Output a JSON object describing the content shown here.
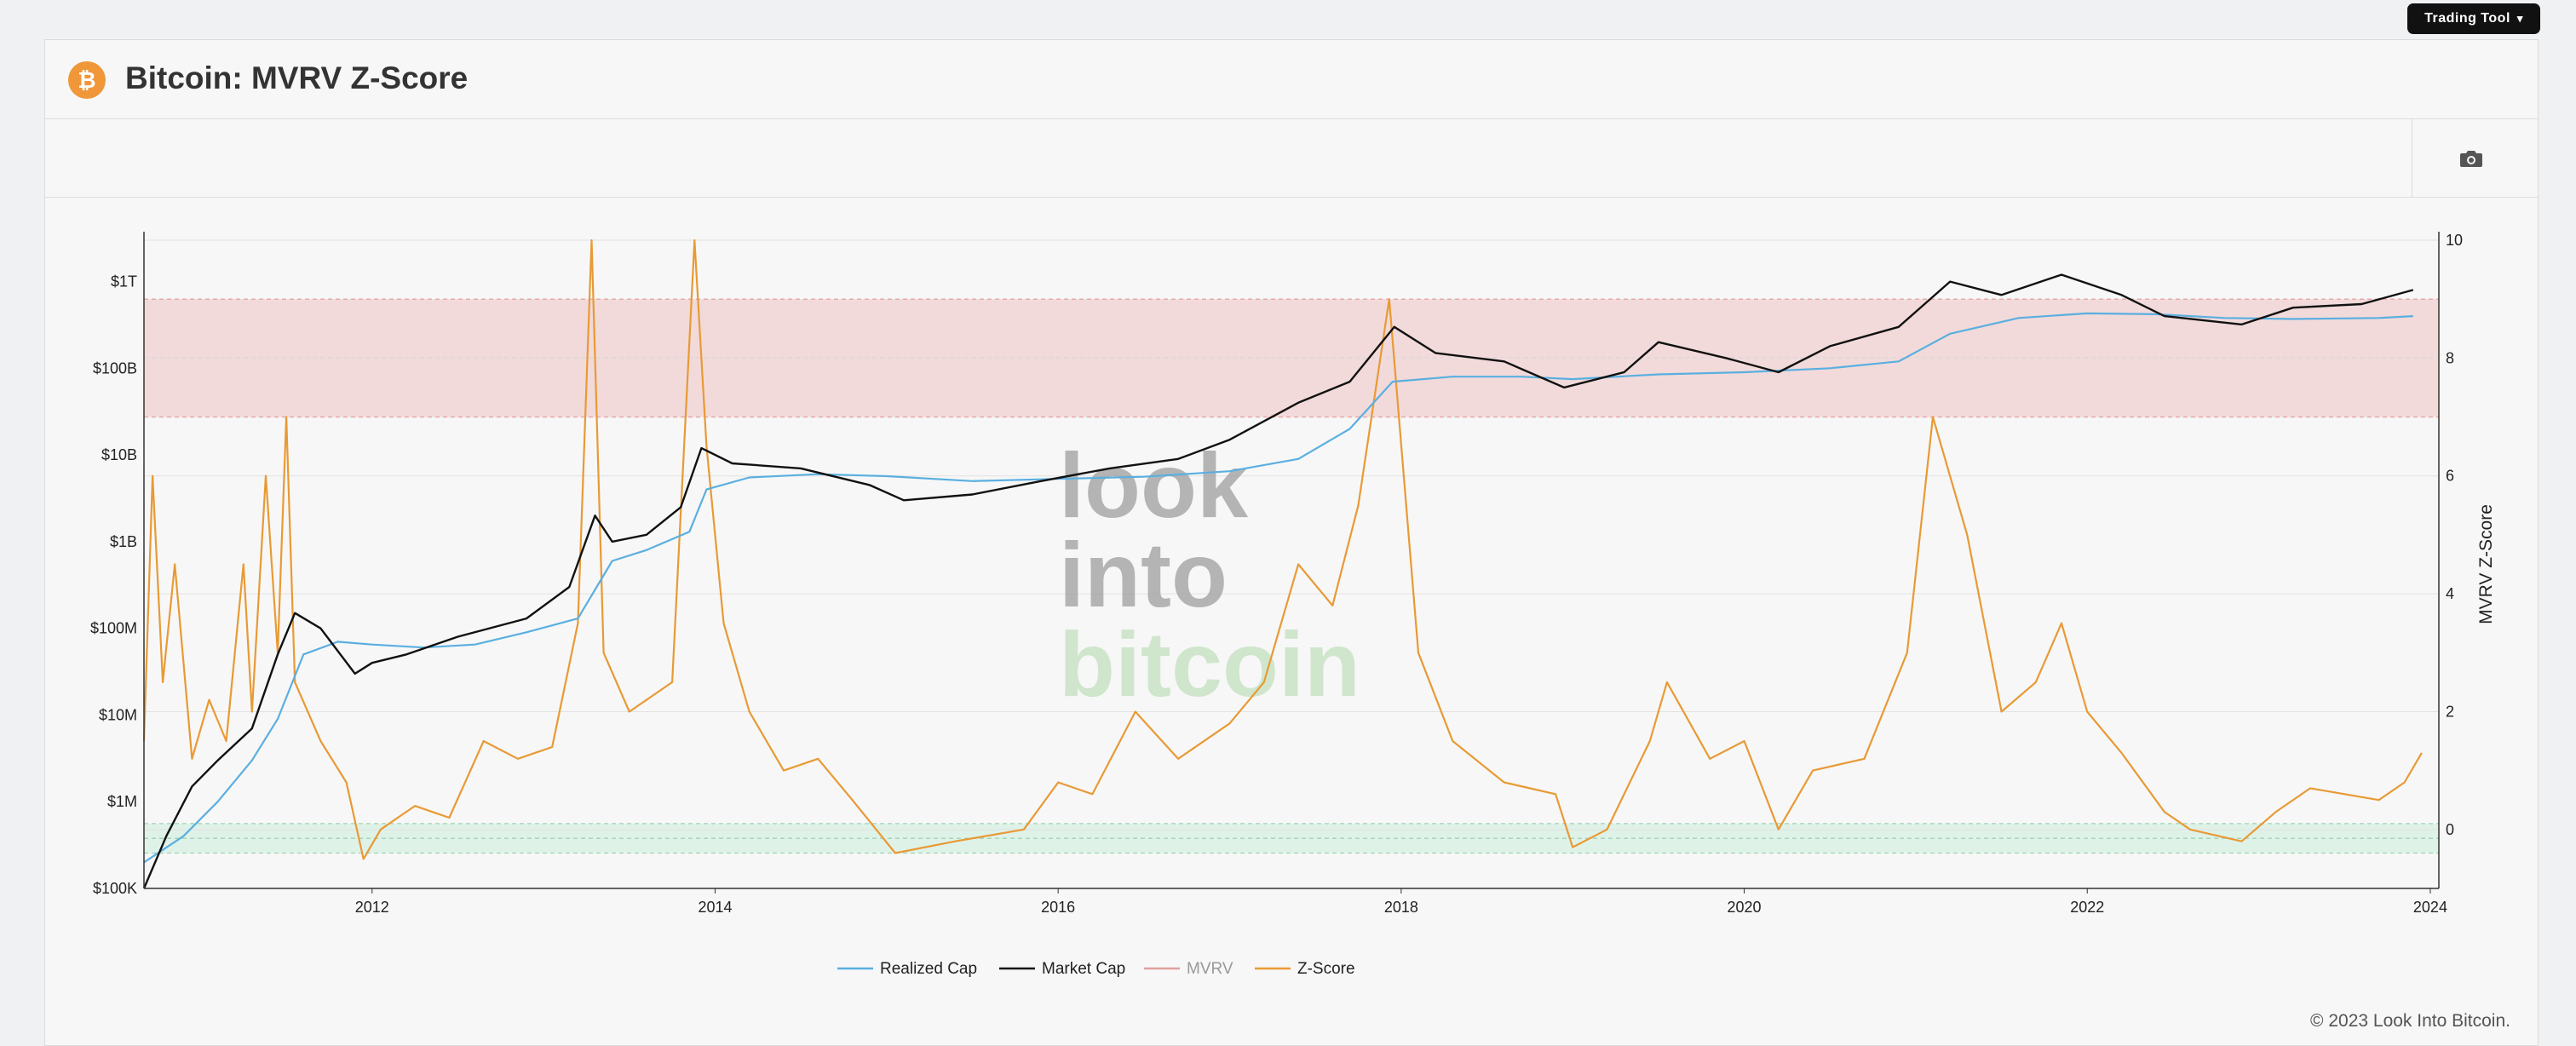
{
  "header": {
    "title": "Bitcoin: MVRV Z-Score",
    "logo_glyph": "₿"
  },
  "toolbar": {
    "trading_tool_label": "Trading Tool",
    "trading_tool_caret": "▾",
    "camera_icon": "camera-icon"
  },
  "footer": {
    "copyright": "© 2023 Look Into Bitcoin."
  },
  "watermark": {
    "line1": "look",
    "line2": "into",
    "line3": "bitcoin"
  },
  "colors": {
    "realized": "#5aafe0",
    "market": "#111111",
    "mvrv": "#e0a0a0",
    "zscore": "#e89a35",
    "red_band": "#f2dada",
    "green_band": "#dff2e8"
  },
  "chart_data": {
    "type": "line",
    "title": "Bitcoin: MVRV Z-Score",
    "xlabel": "",
    "ylabel_right": "MVRV Z-Score",
    "x_range": [
      2010.67,
      2024.05
    ],
    "x_ticks": [
      "2012",
      "2014",
      "2016",
      "2018",
      "2020",
      "2022",
      "2024"
    ],
    "y_left_scale": "log",
    "y_left_range": [
      100000,
      3000000000000
    ],
    "y_left_ticks": [
      {
        "label": "$100K",
        "value": 100000
      },
      {
        "label": "$1M",
        "value": 1000000
      },
      {
        "label": "$10M",
        "value": 10000000
      },
      {
        "label": "$100M",
        "value": 100000000
      },
      {
        "label": "$1B",
        "value": 1000000000
      },
      {
        "label": "$10B",
        "value": 10000000000
      },
      {
        "label": "$100B",
        "value": 100000000000
      },
      {
        "label": "$1T",
        "value": 1000000000000
      }
    ],
    "y_right_range": [
      -1,
      10
    ],
    "y_right_ticks": [
      "0",
      "2",
      "4",
      "6",
      "8",
      "10"
    ],
    "bands": [
      {
        "name": "overvalued",
        "z_from": 7,
        "z_to": 9
      },
      {
        "name": "undervalued",
        "z_from": -0.4,
        "z_to": 0.1
      }
    ],
    "legend": [
      "Realized Cap",
      "Market Cap",
      "MVRV",
      "Z-Score"
    ],
    "legend_position": "bottom-center",
    "series": [
      {
        "name": "Realized Cap",
        "axis": "left",
        "points": [
          [
            2010.67,
            200000
          ],
          [
            2010.9,
            400000
          ],
          [
            2011.1,
            1000000
          ],
          [
            2011.3,
            3000000
          ],
          [
            2011.45,
            9000000
          ],
          [
            2011.6,
            50000000
          ],
          [
            2011.8,
            70000000
          ],
          [
            2012.0,
            65000000
          ],
          [
            2012.3,
            60000000
          ],
          [
            2012.6,
            65000000
          ],
          [
            2012.9,
            90000000
          ],
          [
            2013.2,
            130000000
          ],
          [
            2013.4,
            600000000
          ],
          [
            2013.6,
            800000000
          ],
          [
            2013.85,
            1300000000
          ],
          [
            2013.95,
            4000000000
          ],
          [
            2014.2,
            5500000000
          ],
          [
            2014.6,
            6000000000
          ],
          [
            2015.0,
            5700000000
          ],
          [
            2015.5,
            5000000000
          ],
          [
            2016.0,
            5300000000
          ],
          [
            2016.5,
            5600000000
          ],
          [
            2017.0,
            6500000000
          ],
          [
            2017.4,
            9000000000
          ],
          [
            2017.7,
            20000000000
          ],
          [
            2017.95,
            70000000000
          ],
          [
            2018.3,
            80000000000
          ],
          [
            2018.7,
            80000000000
          ],
          [
            2019.0,
            75000000000
          ],
          [
            2019.5,
            85000000000
          ],
          [
            2020.0,
            90000000000
          ],
          [
            2020.5,
            100000000000
          ],
          [
            2020.9,
            120000000000
          ],
          [
            2021.2,
            250000000000
          ],
          [
            2021.6,
            380000000000
          ],
          [
            2022.0,
            430000000000
          ],
          [
            2022.4,
            420000000000
          ],
          [
            2022.8,
            380000000000
          ],
          [
            2023.2,
            370000000000
          ],
          [
            2023.7,
            380000000000
          ],
          [
            2023.9,
            400000000000
          ]
        ]
      },
      {
        "name": "Market Cap",
        "axis": "left",
        "points": [
          [
            2010.67,
            100000
          ],
          [
            2010.8,
            400000
          ],
          [
            2010.95,
            1500000
          ],
          [
            2011.1,
            3000000
          ],
          [
            2011.3,
            7000000
          ],
          [
            2011.45,
            50000000
          ],
          [
            2011.55,
            150000000
          ],
          [
            2011.7,
            100000000
          ],
          [
            2011.9,
            30000000
          ],
          [
            2012.0,
            40000000
          ],
          [
            2012.2,
            50000000
          ],
          [
            2012.5,
            80000000
          ],
          [
            2012.9,
            130000000
          ],
          [
            2013.15,
            300000000
          ],
          [
            2013.3,
            2000000000
          ],
          [
            2013.4,
            1000000000
          ],
          [
            2013.6,
            1200000000
          ],
          [
            2013.8,
            2500000000
          ],
          [
            2013.92,
            12000000000
          ],
          [
            2014.1,
            8000000000
          ],
          [
            2014.5,
            7000000000
          ],
          [
            2014.9,
            4500000000
          ],
          [
            2015.1,
            3000000000
          ],
          [
            2015.5,
            3500000000
          ],
          [
            2015.9,
            5000000000
          ],
          [
            2016.3,
            7000000000
          ],
          [
            2016.7,
            9000000000
          ],
          [
            2017.0,
            15000000000
          ],
          [
            2017.4,
            40000000000
          ],
          [
            2017.7,
            70000000000
          ],
          [
            2017.96,
            300000000000
          ],
          [
            2018.2,
            150000000000
          ],
          [
            2018.6,
            120000000000
          ],
          [
            2018.95,
            60000000000
          ],
          [
            2019.3,
            90000000000
          ],
          [
            2019.5,
            200000000000
          ],
          [
            2019.9,
            130000000000
          ],
          [
            2020.2,
            90000000000
          ],
          [
            2020.5,
            180000000000
          ],
          [
            2020.9,
            300000000000
          ],
          [
            2021.2,
            1000000000000
          ],
          [
            2021.5,
            700000000000
          ],
          [
            2021.85,
            1200000000000
          ],
          [
            2022.2,
            700000000000
          ],
          [
            2022.45,
            400000000000
          ],
          [
            2022.9,
            320000000000
          ],
          [
            2023.2,
            500000000000
          ],
          [
            2023.6,
            550000000000
          ],
          [
            2023.9,
            800000000000
          ]
        ]
      },
      {
        "name": "Z-Score",
        "axis": "right",
        "points": [
          [
            2010.67,
            1.5
          ],
          [
            2010.72,
            6.0
          ],
          [
            2010.78,
            2.5
          ],
          [
            2010.85,
            4.5
          ],
          [
            2010.95,
            1.2
          ],
          [
            2011.05,
            2.2
          ],
          [
            2011.15,
            1.5
          ],
          [
            2011.25,
            4.5
          ],
          [
            2011.3,
            2.0
          ],
          [
            2011.38,
            6.0
          ],
          [
            2011.45,
            3.0
          ],
          [
            2011.5,
            7.0
          ],
          [
            2011.55,
            2.5
          ],
          [
            2011.7,
            1.5
          ],
          [
            2011.85,
            0.8
          ],
          [
            2011.95,
            -0.5
          ],
          [
            2012.05,
            0.0
          ],
          [
            2012.25,
            0.4
          ],
          [
            2012.45,
            0.2
          ],
          [
            2012.65,
            1.5
          ],
          [
            2012.85,
            1.2
          ],
          [
            2013.05,
            1.4
          ],
          [
            2013.2,
            3.5
          ],
          [
            2013.28,
            10.0
          ],
          [
            2013.35,
            3.0
          ],
          [
            2013.5,
            2.0
          ],
          [
            2013.75,
            2.5
          ],
          [
            2013.88,
            10.0
          ],
          [
            2013.95,
            6.5
          ],
          [
            2014.05,
            3.5
          ],
          [
            2014.2,
            2.0
          ],
          [
            2014.4,
            1.0
          ],
          [
            2014.6,
            1.2
          ],
          [
            2014.8,
            0.5
          ],
          [
            2015.05,
            -0.4
          ],
          [
            2015.4,
            -0.2
          ],
          [
            2015.8,
            0.0
          ],
          [
            2016.0,
            0.8
          ],
          [
            2016.2,
            0.6
          ],
          [
            2016.45,
            2.0
          ],
          [
            2016.7,
            1.2
          ],
          [
            2017.0,
            1.8
          ],
          [
            2017.2,
            2.5
          ],
          [
            2017.4,
            4.5
          ],
          [
            2017.6,
            3.8
          ],
          [
            2017.75,
            5.5
          ],
          [
            2017.93,
            9.0
          ],
          [
            2018.1,
            3.0
          ],
          [
            2018.3,
            1.5
          ],
          [
            2018.6,
            0.8
          ],
          [
            2018.9,
            0.6
          ],
          [
            2019.0,
            -0.3
          ],
          [
            2019.2,
            0.0
          ],
          [
            2019.45,
            1.5
          ],
          [
            2019.55,
            2.5
          ],
          [
            2019.8,
            1.2
          ],
          [
            2020.0,
            1.5
          ],
          [
            2020.2,
            0.0
          ],
          [
            2020.4,
            1.0
          ],
          [
            2020.7,
            1.2
          ],
          [
            2020.95,
            3.0
          ],
          [
            2021.1,
            7.0
          ],
          [
            2021.3,
            5.0
          ],
          [
            2021.5,
            2.0
          ],
          [
            2021.7,
            2.5
          ],
          [
            2021.85,
            3.5
          ],
          [
            2022.0,
            2.0
          ],
          [
            2022.2,
            1.3
          ],
          [
            2022.45,
            0.3
          ],
          [
            2022.6,
            0.0
          ],
          [
            2022.9,
            -0.2
          ],
          [
            2023.1,
            0.3
          ],
          [
            2023.3,
            0.7
          ],
          [
            2023.5,
            0.6
          ],
          [
            2023.7,
            0.5
          ],
          [
            2023.85,
            0.8
          ],
          [
            2023.95,
            1.3
          ]
        ]
      }
    ]
  }
}
